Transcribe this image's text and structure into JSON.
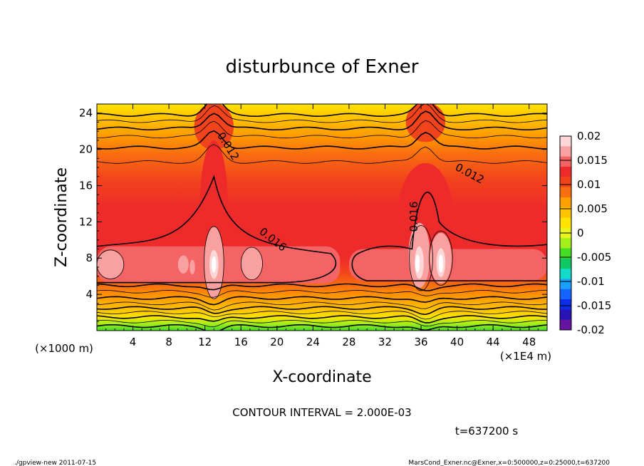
{
  "chart_data": {
    "type": "heatmap",
    "title": "disturbunce of Exner",
    "xlabel": "X-coordinate",
    "ylabel": "Z-coordinate",
    "x_unit_left": "(×1000 m)",
    "x_unit_right": "(×1E4 m)",
    "x_ticks": [
      "4",
      "8",
      "12",
      "16",
      "20",
      "24",
      "28",
      "32",
      "36",
      "40",
      "44",
      "48"
    ],
    "y_ticks": [
      "4",
      "8",
      "12",
      "16",
      "20",
      "24"
    ],
    "xlim": [
      0,
      50
    ],
    "ylim": [
      0,
      25
    ],
    "contour_labels": [
      "0.012",
      "0.016",
      "0.016",
      "0.012"
    ],
    "colorbar": {
      "ticks": [
        "0.02",
        "0.015",
        "0.01",
        "0.005",
        "0",
        "-0.005",
        "-0.01",
        "-0.015",
        "-0.02"
      ],
      "colors": [
        "#fdd7d7",
        "#f9a0a0",
        "#f46464",
        "#ee2b2b",
        "#f2441c",
        "#f96e10",
        "#ffa000",
        "#ffc400",
        "#ffe400",
        "#e8f51a",
        "#a4ee1a",
        "#44dc24",
        "#10c864",
        "#10dcc8",
        "#1aa0ff",
        "#1464ff",
        "#0c2ce8",
        "#2814b4",
        "#6414a0"
      ]
    },
    "contour_interval": "CONTOUR INTERVAL = 2.000E-03",
    "time": "t=637200 s",
    "features": [
      {
        "x": 13,
        "z": 7,
        "value": 0.02
      },
      {
        "x": 36.5,
        "z": 7.5,
        "value": 0.02
      },
      {
        "x": 1.5,
        "z": 7,
        "value": 0.018
      },
      {
        "x": 17,
        "z": 7,
        "value": 0.018
      }
    ]
  },
  "footer": {
    "left": "./gpview-new   2011-07-15",
    "right": "MarsCond_Exner.nc@Exner,x=0:500000,z=0:25000,t=637200"
  }
}
